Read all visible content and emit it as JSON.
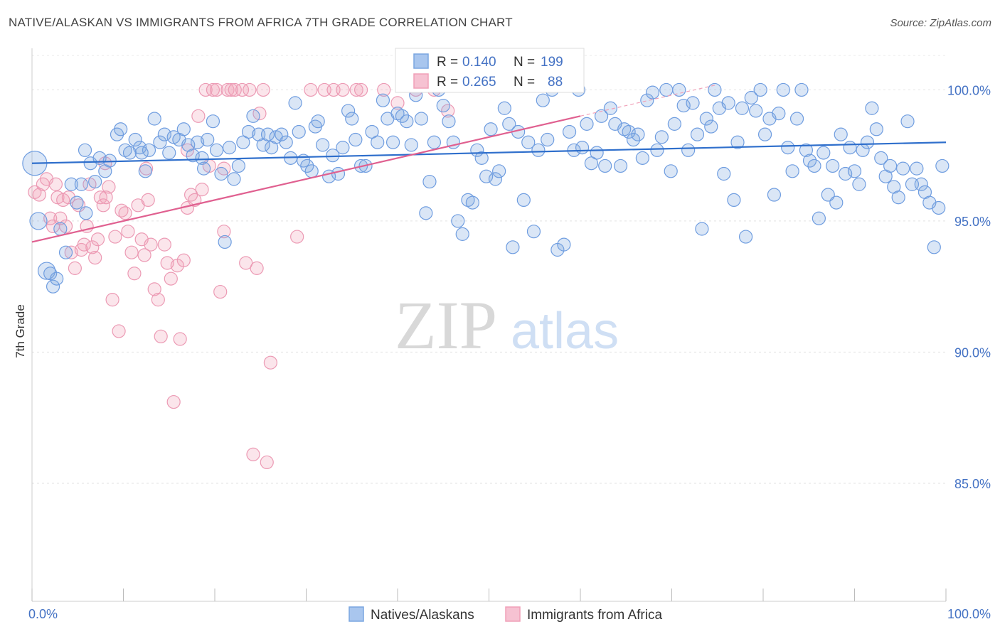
{
  "title": "NATIVE/ALASKAN VS IMMIGRANTS FROM AFRICA 7TH GRADE CORRELATION CHART",
  "source": "Source: ZipAtlas.com",
  "watermark": {
    "zip": "ZIP",
    "atlas": "atlas"
  },
  "colors": {
    "blue": "#7aa6e0",
    "blue_line": "#2f6fcc",
    "pink": "#f0a0b8",
    "pink_line": "#e06090",
    "axis_text": "#4472c4",
    "grid": "#dddddd"
  },
  "legend": {
    "r_label": "R =",
    "n_label": "N =",
    "series1": {
      "r": "0.140",
      "n": "199"
    },
    "series2": {
      "r": "0.265",
      "n": "88"
    }
  },
  "chart_data": {
    "type": "scatter",
    "title": "NATIVE/ALASKAN VS IMMIGRANTS FROM AFRICA 7TH GRADE CORRELATION CHART",
    "xlabel": "",
    "ylabel": "7th Grade",
    "xlim": [
      0,
      100
    ],
    "ylim": [
      80.5,
      101.8
    ],
    "x_ticks": [
      "0.0%",
      "100.0%"
    ],
    "y_ticks": [
      {
        "value": 100,
        "label": "100.0%"
      },
      {
        "value": 95,
        "label": "95.0%"
      },
      {
        "value": 90,
        "label": "90.0%"
      },
      {
        "value": 85,
        "label": "85.0%"
      }
    ],
    "grid": true,
    "legend_position": "top-center",
    "series": [
      {
        "name": "Natives/Alaskans",
        "color": "#7aa6e0",
        "trend": {
          "x0": 0,
          "y0": 97.2,
          "x1": 100,
          "y1": 98.0
        },
        "points": [
          [
            0.3,
            97.2
          ],
          [
            0.7,
            95.0
          ],
          [
            1.6,
            93.1
          ],
          [
            2.0,
            93.0
          ],
          [
            2.3,
            92.5
          ],
          [
            2.7,
            92.8
          ],
          [
            3.1,
            94.7
          ],
          [
            3.7,
            93.8
          ],
          [
            4.3,
            96.4
          ],
          [
            4.9,
            95.7
          ],
          [
            5.4,
            96.4
          ],
          [
            5.9,
            95.3
          ],
          [
            6.4,
            97.2
          ],
          [
            6.9,
            96.5
          ],
          [
            7.4,
            97.4
          ],
          [
            8.0,
            96.9
          ],
          [
            8.5,
            97.3
          ],
          [
            9.3,
            98.3
          ],
          [
            9.7,
            98.5
          ],
          [
            10.2,
            97.7
          ],
          [
            10.7,
            97.6
          ],
          [
            11.3,
            98.1
          ],
          [
            11.8,
            97.8
          ],
          [
            12.4,
            96.9
          ],
          [
            12.8,
            97.7
          ],
          [
            13.4,
            98.9
          ],
          [
            14.0,
            98.0
          ],
          [
            14.5,
            98.3
          ],
          [
            15.0,
            97.6
          ],
          [
            15.5,
            98.2
          ],
          [
            16.1,
            98.1
          ],
          [
            16.6,
            98.5
          ],
          [
            17.1,
            97.9
          ],
          [
            17.6,
            97.5
          ],
          [
            18.1,
            98.0
          ],
          [
            18.6,
            97.4
          ],
          [
            19.2,
            98.1
          ],
          [
            19.8,
            98.8
          ],
          [
            20.2,
            97.7
          ],
          [
            20.7,
            96.8
          ],
          [
            21.1,
            94.2
          ],
          [
            21.6,
            97.8
          ],
          [
            22.1,
            96.6
          ],
          [
            22.6,
            97.1
          ],
          [
            23.1,
            98.0
          ],
          [
            23.7,
            98.4
          ],
          [
            24.2,
            99.0
          ],
          [
            24.8,
            98.3
          ],
          [
            25.3,
            97.9
          ],
          [
            25.8,
            98.3
          ],
          [
            26.2,
            97.8
          ],
          [
            26.7,
            98.2
          ],
          [
            27.3,
            98.3
          ],
          [
            27.8,
            98.0
          ],
          [
            28.3,
            97.4
          ],
          [
            28.8,
            99.5
          ],
          [
            29.2,
            98.4
          ],
          [
            29.7,
            97.3
          ],
          [
            30.1,
            97.1
          ],
          [
            30.6,
            96.9
          ],
          [
            31.0,
            98.6
          ],
          [
            31.3,
            98.8
          ],
          [
            31.8,
            97.9
          ],
          [
            32.5,
            96.7
          ],
          [
            32.9,
            97.5
          ],
          [
            33.5,
            96.8
          ],
          [
            34.0,
            97.8
          ],
          [
            34.6,
            99.2
          ],
          [
            35.0,
            98.9
          ],
          [
            35.4,
            98.1
          ],
          [
            36.0,
            97.1
          ],
          [
            36.5,
            97.1
          ],
          [
            37.2,
            98.4
          ],
          [
            37.8,
            98.0
          ],
          [
            38.4,
            99.6
          ],
          [
            38.9,
            98.9
          ],
          [
            39.5,
            98.0
          ],
          [
            40.0,
            99.1
          ],
          [
            40.5,
            99.0
          ],
          [
            41.0,
            98.8
          ],
          [
            41.5,
            97.9
          ],
          [
            42.0,
            99.8
          ],
          [
            42.6,
            98.9
          ],
          [
            43.1,
            95.3
          ],
          [
            43.5,
            96.5
          ],
          [
            44.0,
            98.0
          ],
          [
            44.5,
            100.0
          ],
          [
            45.0,
            99.4
          ],
          [
            45.6,
            98.8
          ],
          [
            46.1,
            98.0
          ],
          [
            46.6,
            95.0
          ],
          [
            47.1,
            94.5
          ],
          [
            47.7,
            95.8
          ],
          [
            48.2,
            95.7
          ],
          [
            48.7,
            97.7
          ],
          [
            49.2,
            97.4
          ],
          [
            49.7,
            96.7
          ],
          [
            50.2,
            98.5
          ],
          [
            50.7,
            96.6
          ],
          [
            51.1,
            96.9
          ],
          [
            51.7,
            99.3
          ],
          [
            52.2,
            98.7
          ],
          [
            52.6,
            94.0
          ],
          [
            53.2,
            98.4
          ],
          [
            53.8,
            95.8
          ],
          [
            54.3,
            98.0
          ],
          [
            54.9,
            94.6
          ],
          [
            55.4,
            97.7
          ],
          [
            55.9,
            99.6
          ],
          [
            56.4,
            98.1
          ],
          [
            56.9,
            100.0
          ],
          [
            57.5,
            93.9
          ],
          [
            58.2,
            94.1
          ],
          [
            58.8,
            98.4
          ],
          [
            59.3,
            97.7
          ],
          [
            59.8,
            100.0
          ],
          [
            60.2,
            97.8
          ],
          [
            60.7,
            98.7
          ],
          [
            61.2,
            97.2
          ],
          [
            61.8,
            97.6
          ],
          [
            62.3,
            99.0
          ],
          [
            62.7,
            97.1
          ],
          [
            63.3,
            99.3
          ],
          [
            63.8,
            98.7
          ],
          [
            64.4,
            97.1
          ],
          [
            64.8,
            98.5
          ],
          [
            65.3,
            98.4
          ],
          [
            65.8,
            98.1
          ],
          [
            66.3,
            98.3
          ],
          [
            66.8,
            97.4
          ],
          [
            67.3,
            99.6
          ],
          [
            67.9,
            99.9
          ],
          [
            68.4,
            97.7
          ],
          [
            68.9,
            98.2
          ],
          [
            69.4,
            100.0
          ],
          [
            69.9,
            96.9
          ],
          [
            70.3,
            98.7
          ],
          [
            70.8,
            100.0
          ],
          [
            71.3,
            99.4
          ],
          [
            71.8,
            97.7
          ],
          [
            72.3,
            99.5
          ],
          [
            72.8,
            98.3
          ],
          [
            73.3,
            94.7
          ],
          [
            73.8,
            98.9
          ],
          [
            74.3,
            98.6
          ],
          [
            74.7,
            100.0
          ],
          [
            75.2,
            99.3
          ],
          [
            75.7,
            96.8
          ],
          [
            76.2,
            99.5
          ],
          [
            76.8,
            95.8
          ],
          [
            77.2,
            98.0
          ],
          [
            77.7,
            99.3
          ],
          [
            78.1,
            94.4
          ],
          [
            78.7,
            99.7
          ],
          [
            79.2,
            99.2
          ],
          [
            79.7,
            100.0
          ],
          [
            80.2,
            98.3
          ],
          [
            80.7,
            98.9
          ],
          [
            81.2,
            96.0
          ],
          [
            81.7,
            99.1
          ],
          [
            82.2,
            100.0
          ],
          [
            82.7,
            97.8
          ],
          [
            83.2,
            96.9
          ],
          [
            83.7,
            98.9
          ],
          [
            84.2,
            100.0
          ],
          [
            84.7,
            97.7
          ],
          [
            85.1,
            97.3
          ],
          [
            85.6,
            97.1
          ],
          [
            86.1,
            95.1
          ],
          [
            86.6,
            97.6
          ],
          [
            87.1,
            96.0
          ],
          [
            87.6,
            97.1
          ],
          [
            88.0,
            95.7
          ],
          [
            88.5,
            98.3
          ],
          [
            89.0,
            96.8
          ],
          [
            89.5,
            97.8
          ],
          [
            90.0,
            96.9
          ],
          [
            90.5,
            96.4
          ],
          [
            90.9,
            97.7
          ],
          [
            91.4,
            98.0
          ],
          [
            91.9,
            99.3
          ],
          [
            92.4,
            98.5
          ],
          [
            92.9,
            97.4
          ],
          [
            93.4,
            96.7
          ],
          [
            93.9,
            97.1
          ],
          [
            94.3,
            96.3
          ],
          [
            94.8,
            95.9
          ],
          [
            95.3,
            97.0
          ],
          [
            95.8,
            98.8
          ],
          [
            96.3,
            96.4
          ],
          [
            96.8,
            97.0
          ],
          [
            97.3,
            96.4
          ],
          [
            97.7,
            96.1
          ],
          [
            98.2,
            95.7
          ],
          [
            98.7,
            94.0
          ],
          [
            99.2,
            95.5
          ],
          [
            99.6,
            97.1
          ],
          [
            5.8,
            97.7
          ],
          [
            12.0,
            97.6
          ],
          [
            18.8,
            97.0
          ]
        ]
      },
      {
        "name": "Immigrants from Africa",
        "color": "#f0a0b8",
        "trend": {
          "x0": 0,
          "y0": 94.2,
          "x1": 60,
          "y1": 99.0
        },
        "points": [
          [
            0.3,
            96.1
          ],
          [
            0.8,
            96.0
          ],
          [
            1.2,
            96.4
          ],
          [
            1.6,
            96.6
          ],
          [
            2.0,
            95.1
          ],
          [
            2.3,
            94.8
          ],
          [
            2.6,
            96.4
          ],
          [
            2.8,
            95.9
          ],
          [
            3.1,
            95.1
          ],
          [
            3.4,
            95.8
          ],
          [
            3.7,
            94.8
          ],
          [
            4.0,
            95.9
          ],
          [
            4.3,
            93.8
          ],
          [
            4.7,
            93.2
          ],
          [
            5.1,
            95.6
          ],
          [
            5.4,
            93.9
          ],
          [
            5.7,
            94.1
          ],
          [
            6.0,
            94.8
          ],
          [
            6.3,
            96.4
          ],
          [
            6.6,
            94.0
          ],
          [
            6.9,
            93.6
          ],
          [
            7.2,
            94.3
          ],
          [
            7.5,
            95.9
          ],
          [
            7.8,
            95.6
          ],
          [
            8.1,
            95.9
          ],
          [
            8.4,
            96.3
          ],
          [
            8.8,
            92.0
          ],
          [
            9.1,
            94.4
          ],
          [
            9.5,
            90.8
          ],
          [
            9.8,
            95.4
          ],
          [
            10.2,
            95.3
          ],
          [
            10.5,
            94.6
          ],
          [
            10.9,
            93.8
          ],
          [
            11.2,
            93.0
          ],
          [
            11.6,
            95.6
          ],
          [
            12.0,
            94.3
          ],
          [
            12.3,
            93.7
          ],
          [
            12.7,
            95.8
          ],
          [
            13.0,
            94.1
          ],
          [
            13.4,
            92.4
          ],
          [
            13.8,
            92.0
          ],
          [
            14.1,
            90.6
          ],
          [
            14.5,
            94.1
          ],
          [
            14.8,
            93.4
          ],
          [
            15.2,
            92.8
          ],
          [
            15.5,
            88.1
          ],
          [
            15.9,
            93.3
          ],
          [
            16.2,
            90.5
          ],
          [
            16.6,
            93.5
          ],
          [
            17.0,
            95.5
          ],
          [
            17.4,
            96.0
          ],
          [
            17.8,
            95.8
          ],
          [
            18.2,
            99.0
          ],
          [
            18.6,
            96.2
          ],
          [
            19.0,
            100.0
          ],
          [
            19.4,
            97.1
          ],
          [
            19.8,
            100.0
          ],
          [
            20.2,
            100.0
          ],
          [
            20.6,
            92.3
          ],
          [
            21.0,
            94.6
          ],
          [
            21.4,
            100.0
          ],
          [
            21.8,
            100.0
          ],
          [
            22.2,
            100.0
          ],
          [
            23.0,
            100.0
          ],
          [
            23.4,
            93.4
          ],
          [
            23.8,
            100.0
          ],
          [
            24.2,
            86.1
          ],
          [
            24.6,
            93.2
          ],
          [
            24.9,
            99.1
          ],
          [
            25.3,
            100.0
          ],
          [
            25.7,
            85.8
          ],
          [
            26.1,
            89.6
          ],
          [
            29.0,
            94.4
          ],
          [
            30.5,
            100.0
          ],
          [
            32.0,
            100.0
          ],
          [
            33.0,
            100.0
          ],
          [
            34.0,
            100.0
          ],
          [
            35.5,
            100.0
          ],
          [
            36.0,
            100.0
          ],
          [
            38.5,
            100.0
          ],
          [
            40.0,
            99.5
          ],
          [
            42.0,
            100.0
          ],
          [
            44.0,
            100.0
          ],
          [
            45.5,
            99.2
          ],
          [
            8.0,
            97.2
          ],
          [
            12.5,
            97.0
          ],
          [
            17.0,
            97.7
          ],
          [
            21.0,
            97.0
          ]
        ]
      }
    ]
  },
  "bottom_legend": [
    {
      "label": "Natives/Alaskans"
    },
    {
      "label": "Immigrants from Africa"
    }
  ]
}
